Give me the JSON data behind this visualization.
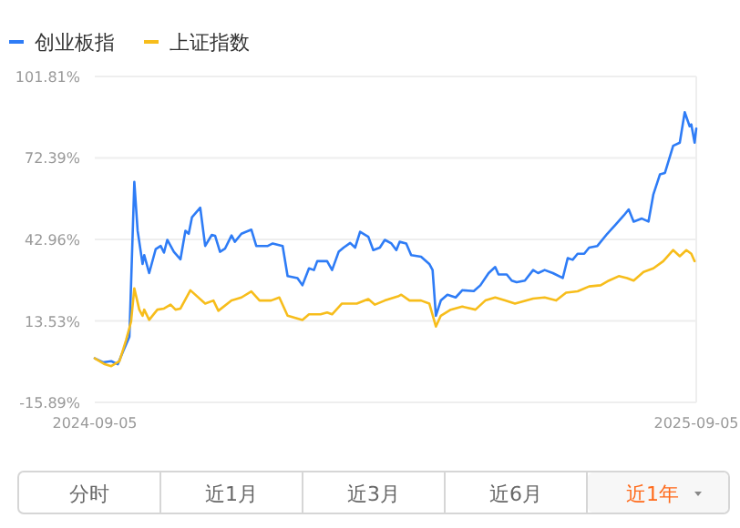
{
  "chart_data": {
    "type": "line",
    "legend": "top left",
    "grid": "y",
    "line_style": "solid",
    "marker": "none",
    "xlim": [
      "2024-09-05",
      "2025-09-05"
    ],
    "xticks": [
      "2024-09-05",
      "2025-09-05"
    ],
    "ylim": [
      -15.89,
      101.81
    ],
    "yticks": [
      {
        "value": -15.89,
        "label": "-15.89%"
      },
      {
        "value": 13.53,
        "label": "13.53%"
      },
      {
        "value": 42.96,
        "label": "42.96%"
      },
      {
        "value": 72.39,
        "label": "72.39%"
      },
      {
        "value": 101.81,
        "label": "101.81%"
      }
    ],
    "series": [
      {
        "name": "创业板指",
        "color": "#2e7cf6",
        "x": [
          "2024-09-05",
          "2024-09-10",
          "2024-09-15",
          "2024-09-19",
          "2024-09-22",
          "2024-09-26",
          "2024-09-29",
          "2024-10-01",
          "2024-10-04",
          "2024-10-05",
          "2024-10-08",
          "2024-10-12",
          "2024-10-15",
          "2024-10-17",
          "2024-10-19",
          "2024-10-23",
          "2024-10-27",
          "2024-10-30",
          "2024-11-01",
          "2024-11-03",
          "2024-11-08",
          "2024-11-11",
          "2024-11-15",
          "2024-11-17",
          "2024-11-20",
          "2024-11-23",
          "2024-11-27",
          "2024-11-29",
          "2024-12-03",
          "2024-12-09",
          "2024-12-12",
          "2024-12-19",
          "2024-12-22",
          "2024-12-28",
          "2024-12-31",
          "2025-01-06",
          "2025-01-09",
          "2025-01-13",
          "2025-01-16",
          "2025-01-18",
          "2025-01-24",
          "2025-01-27",
          "2025-01-31",
          "2025-02-03",
          "2025-02-07",
          "2025-02-10",
          "2025-02-13",
          "2025-02-18",
          "2025-02-21",
          "2025-02-25",
          "2025-02-28",
          "2025-03-04",
          "2025-03-07",
          "2025-03-09",
          "2025-03-13",
          "2025-03-16",
          "2025-03-22",
          "2025-03-27",
          "2025-03-29",
          "2025-03-31",
          "2025-04-03",
          "2025-04-07",
          "2025-04-12",
          "2025-04-16",
          "2025-04-23",
          "2025-04-27",
          "2025-05-02",
          "2025-05-06",
          "2025-05-08",
          "2025-05-13",
          "2025-05-16",
          "2025-05-19",
          "2025-05-24",
          "2025-05-29",
          "2025-06-01",
          "2025-06-05",
          "2025-06-10",
          "2025-06-16",
          "2025-06-19",
          "2025-06-22",
          "2025-06-25",
          "2025-06-29",
          "2025-07-02",
          "2025-07-07",
          "2025-07-13",
          "2025-07-18",
          "2025-07-23",
          "2025-07-26",
          "2025-07-29",
          "2025-08-03",
          "2025-08-07",
          "2025-08-10",
          "2025-08-14",
          "2025-08-17",
          "2025-08-22",
          "2025-08-26",
          "2025-08-29",
          "2025-09-01",
          "2025-09-02",
          "2025-09-04",
          "2025-09-05"
        ],
        "values": [
          0,
          -1.4,
          -1,
          -2.1,
          2.3,
          7.8,
          63.7,
          46.1,
          34.1,
          37.3,
          30.8,
          39.5,
          40.6,
          38.2,
          42.8,
          38.5,
          35.8,
          46.1,
          45,
          51,
          54.4,
          40.6,
          44.6,
          44.3,
          38.5,
          39.6,
          44.4,
          42.1,
          45,
          46.5,
          40.6,
          40.6,
          41.5,
          40.6,
          29.7,
          29,
          26.4,
          32.5,
          31.9,
          35.1,
          35.1,
          31.9,
          38.5,
          40,
          41.7,
          40,
          45.7,
          43.9,
          39.1,
          40,
          42.8,
          41.5,
          39.1,
          42.1,
          41.5,
          37.3,
          36.7,
          34.1,
          31.9,
          15.4,
          20.9,
          23,
          22,
          24.6,
          24.3,
          26.4,
          30.8,
          33,
          30.3,
          30.3,
          28.1,
          27.5,
          28.1,
          31.9,
          30.8,
          31.9,
          30.8,
          29,
          36.2,
          35.6,
          37.8,
          37.8,
          40,
          40.6,
          45,
          48.3,
          51.6,
          53.8,
          49.4,
          50.5,
          49.4,
          59.3,
          66.5,
          67,
          76.8,
          77.9,
          88.9,
          83.8,
          84.5,
          77.9,
          83
        ]
      },
      {
        "name": "上证指数",
        "color": "#f7bd1b",
        "x": [
          "2024-09-05",
          "2024-09-11",
          "2024-09-15",
          "2024-09-20",
          "2024-09-24",
          "2024-09-27",
          "2024-09-29",
          "2024-10-02",
          "2024-10-04",
          "2024-10-05",
          "2024-10-08",
          "2024-10-13",
          "2024-10-17",
          "2024-10-21",
          "2024-10-24",
          "2024-10-27",
          "2024-11-02",
          "2024-11-11",
          "2024-11-16",
          "2024-11-19",
          "2024-11-27",
          "2024-12-03",
          "2024-12-09",
          "2024-12-14",
          "2024-12-21",
          "2024-12-26",
          "2024-12-31",
          "2025-01-09",
          "2025-01-13",
          "2025-01-20",
          "2025-01-24",
          "2025-01-27",
          "2025-02-02",
          "2025-02-11",
          "2025-02-18",
          "2025-02-22",
          "2025-02-28",
          "2025-03-08",
          "2025-03-10",
          "2025-03-15",
          "2025-03-22",
          "2025-03-27",
          "2025-03-31",
          "2025-04-03",
          "2025-04-09",
          "2025-04-16",
          "2025-04-24",
          "2025-04-30",
          "2025-05-06",
          "2025-05-12",
          "2025-05-18",
          "2025-05-29",
          "2025-06-05",
          "2025-06-12",
          "2025-06-18",
          "2025-06-25",
          "2025-07-02",
          "2025-07-09",
          "2025-07-14",
          "2025-07-20",
          "2025-07-25",
          "2025-07-29",
          "2025-08-04",
          "2025-08-10",
          "2025-08-16",
          "2025-08-22",
          "2025-08-26",
          "2025-08-30",
          "2025-09-02",
          "2025-09-04"
        ],
        "values": [
          0,
          -2.1,
          -2.8,
          -1,
          6.6,
          13.2,
          25.3,
          17.6,
          15.4,
          17.6,
          13.9,
          17.6,
          18,
          19.4,
          17.6,
          18,
          24.6,
          19.8,
          20.9,
          17.2,
          20.9,
          22,
          24.2,
          20.9,
          20.9,
          22,
          15.4,
          13.9,
          15.9,
          15.9,
          16.6,
          15.9,
          19.8,
          19.8,
          21.4,
          19.4,
          20.9,
          22.4,
          23,
          20.9,
          20.9,
          19.8,
          11.5,
          15.4,
          17.6,
          18.7,
          17.6,
          20.9,
          22,
          20.9,
          19.8,
          21.6,
          22,
          20.9,
          23.7,
          24.2,
          26,
          26.4,
          28.1,
          29.7,
          29,
          28.1,
          31.2,
          32.5,
          35.1,
          39.1,
          36.9,
          39.1,
          37.8,
          35.1
        ]
      }
    ],
    "annotations": [
      "分时",
      "近1月",
      "近3月",
      "近6月",
      "近1年"
    ]
  }
}
